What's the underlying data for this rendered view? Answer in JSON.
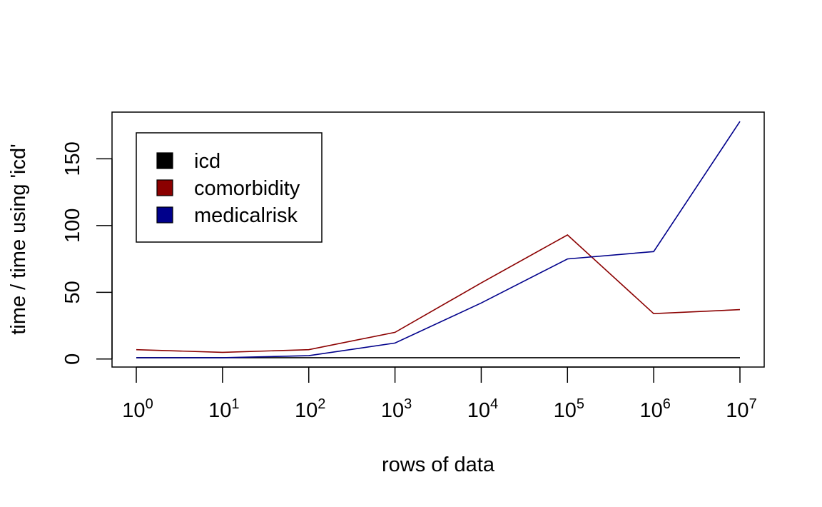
{
  "chart_data": {
    "type": "line",
    "title": "",
    "xlabel": "rows of data",
    "ylabel": "time / time using 'icd'",
    "x_scale": "log10",
    "x": [
      1,
      10,
      100,
      1000,
      10000,
      100000,
      1000000,
      10000000
    ],
    "x_ticks": [
      {
        "base": "10",
        "exp": "0"
      },
      {
        "base": "10",
        "exp": "1"
      },
      {
        "base": "10",
        "exp": "2"
      },
      {
        "base": "10",
        "exp": "3"
      },
      {
        "base": "10",
        "exp": "4"
      },
      {
        "base": "10",
        "exp": "5"
      },
      {
        "base": "10",
        "exp": "6"
      },
      {
        "base": "10",
        "exp": "7"
      }
    ],
    "y_ticks": [
      "0",
      "50",
      "100",
      "150"
    ],
    "y_tick_values": [
      0,
      50,
      100,
      150
    ],
    "ylim": [
      -6,
      185
    ],
    "xlim": [
      1,
      10000000
    ],
    "grid": false,
    "legend_position": "top-left",
    "series": [
      {
        "name": "icd",
        "color": "#000000",
        "values": [
          1,
          1,
          1,
          1,
          1,
          1,
          1,
          1
        ]
      },
      {
        "name": "comorbidity",
        "color": "#8B0000",
        "values": [
          7,
          5,
          7,
          20,
          57,
          93,
          34,
          37
        ]
      },
      {
        "name": "medicalrisk",
        "color": "#00008B",
        "values": [
          1,
          1,
          2.5,
          12,
          42,
          75,
          80.5,
          178
        ]
      }
    ]
  }
}
